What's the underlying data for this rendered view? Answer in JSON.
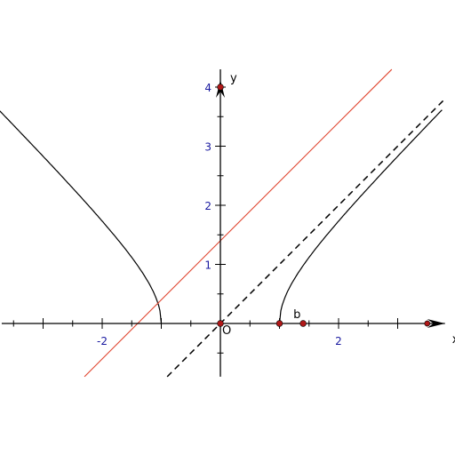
{
  "graph": {
    "axis_x_label": "x",
    "axis_y_label": "y",
    "origin_label": "O",
    "point_b_label": "b",
    "x_tick_labels": [
      {
        "value": -2,
        "text": "-2"
      },
      {
        "value": 2,
        "text": "2"
      }
    ],
    "y_tick_labels": [
      {
        "value": 1,
        "text": "1"
      },
      {
        "value": 2,
        "text": "2"
      },
      {
        "value": 3,
        "text": "3"
      },
      {
        "value": 4,
        "text": "4"
      }
    ],
    "colors": {
      "axis": "#000000",
      "hyperbola": "#000000",
      "red_line": "#e0442e",
      "asymptote": "#000000",
      "point": "#b01818",
      "tick_label": "#1a1aa0"
    },
    "hyperbola": {
      "center_x": 0,
      "a": 1,
      "b": 1
    },
    "asymptote": {
      "slope": 1,
      "intercept": 0,
      "style": "dashed"
    },
    "red_line": {
      "slope": 1,
      "intercept": 1.4
    },
    "points": [
      {
        "name": "origin",
        "x": 0,
        "y": 0
      },
      {
        "name": "vertex-right",
        "x": 1,
        "y": 0
      },
      {
        "name": "point-b",
        "x": 1.4,
        "y": 0
      },
      {
        "name": "y-axis-top",
        "x": 0,
        "y": 4
      },
      {
        "name": "x-axis-end",
        "x": 3.5,
        "y": 0
      }
    ],
    "x_range": [
      -3.7,
      3.8
    ],
    "y_range": [
      -0.9,
      4.3
    ]
  }
}
